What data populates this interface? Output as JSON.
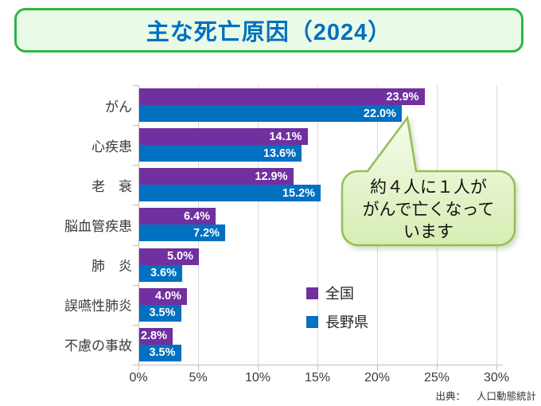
{
  "title": "主な死亡原因（2024）",
  "callout": {
    "lines": [
      "約４人に１人が",
      "がんで亡くなって",
      "います"
    ]
  },
  "legend": {
    "items": [
      {
        "label": "全国",
        "color": "#7030A0"
      },
      {
        "label": "長野県",
        "color": "#0070C0"
      }
    ]
  },
  "source": {
    "prefix": "出典：",
    "text": "人口動態統計"
  },
  "colors": {
    "title_text": "#0070c0",
    "title_border": "#2eb544",
    "title_bg": "#e9fbe6",
    "grid": "#d9d9d9",
    "axis": "#bfbfbf",
    "callout_border": "#94be58",
    "callout_fill_top": "#f4fcea",
    "callout_fill_bottom": "#d7edb3"
  },
  "chart_data": {
    "type": "bar",
    "orientation": "horizontal",
    "title": "主な死亡原因（2024）",
    "categories": [
      "がん",
      "心疾患",
      "老　衰",
      "脳血管疾患",
      "肺　炎",
      "誤嚥性肺炎",
      "不慮の事故"
    ],
    "series": [
      {
        "name": "全国",
        "color": "#7030A0",
        "values": [
          23.9,
          14.1,
          12.9,
          6.4,
          5.0,
          4.0,
          2.8
        ]
      },
      {
        "name": "長野県",
        "color": "#0070C0",
        "values": [
          22.0,
          13.6,
          15.2,
          7.2,
          3.6,
          3.5,
          3.5
        ]
      }
    ],
    "value_labels": true,
    "value_suffix": "%",
    "x_ticks": [
      0,
      5,
      10,
      15,
      20,
      25,
      30
    ],
    "x_tick_labels": [
      "0%",
      "5%",
      "10%",
      "15%",
      "20%",
      "25%",
      "30%"
    ],
    "xlim": [
      0,
      30
    ],
    "grid": true,
    "legend_position": "inside-center-right",
    "annotation": "約４人に１人ががんで亡くなっています"
  }
}
